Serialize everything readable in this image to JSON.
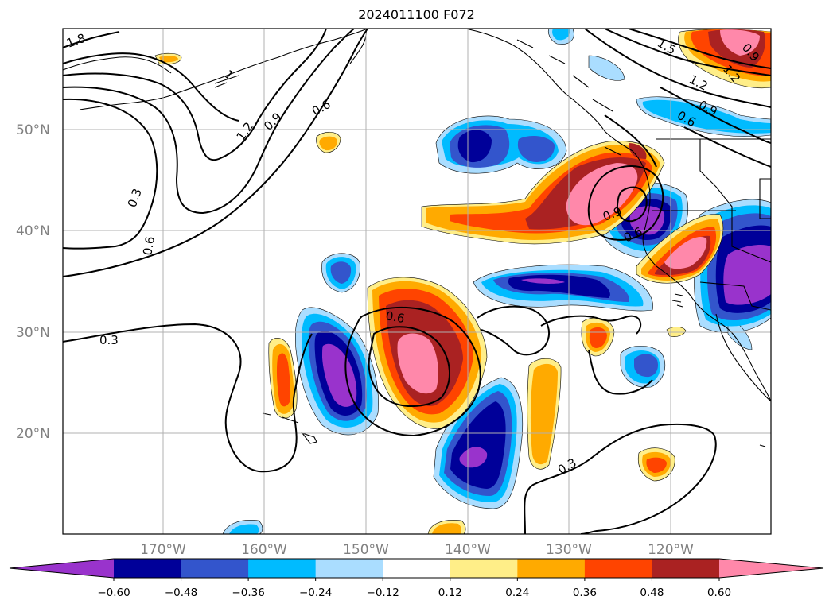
{
  "title": "2024011100 F072",
  "map": {
    "lat_ticks": [
      "50°N",
      "40°N",
      "30°N",
      "20°N"
    ],
    "lon_ticks": [
      "170°W",
      "160°W",
      "150°W",
      "140°W",
      "130°W",
      "120°W"
    ],
    "contour_labels": [
      "1.8",
      "1",
      "1.2",
      "0.9",
      "0.6",
      "0.3",
      "0.6",
      "0.3",
      "0.6",
      "0.3",
      "1.5",
      "1.2",
      "0.9",
      "0.6",
      "0.9",
      "0.6",
      "0.9",
      "1.2"
    ]
  },
  "colorbar": {
    "ticks": [
      "−0.60",
      "−0.48",
      "−0.36",
      "−0.24",
      "−0.12",
      "0.12",
      "0.24",
      "0.36",
      "0.48",
      "0.60"
    ],
    "colors": [
      "#9933cc",
      "#000099",
      "#3355cc",
      "#00bbff",
      "#aaddff",
      "#ffffff",
      "#ffee88",
      "#ffaa00",
      "#ff4400",
      "#aa2222",
      "#ff88aa"
    ]
  },
  "colors": {
    "coast": "#000000",
    "grid": "#b0b0b0",
    "contour": "#000000",
    "tick_label": "#808080"
  }
}
